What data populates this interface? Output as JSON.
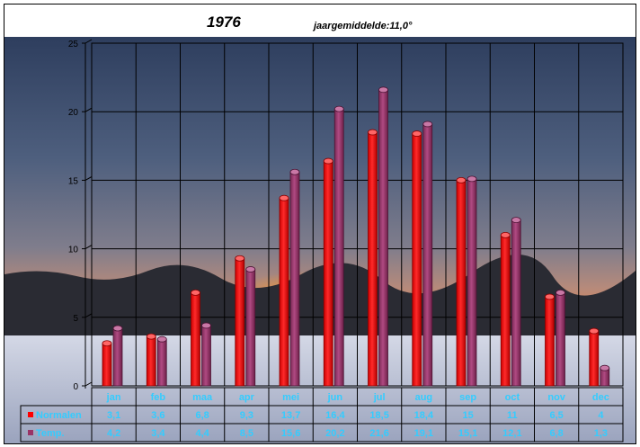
{
  "chart_data": {
    "type": "bar",
    "title": "1976",
    "subtitle": "jaargemiddelde:11,0°",
    "categories": [
      "jan",
      "feb",
      "maa",
      "apr",
      "mei",
      "jun",
      "jul",
      "aug",
      "sep",
      "oct",
      "nov",
      "dec"
    ],
    "series": [
      {
        "name": "Normalen",
        "color": "#ff0000",
        "values": [
          3.1,
          3.6,
          6.8,
          9.3,
          13.7,
          16.4,
          18.5,
          18.4,
          15,
          11,
          6.5,
          4
        ],
        "labels": [
          "3,1",
          "3,6",
          "6,8",
          "9,3",
          "13,7",
          "16,4",
          "18,5",
          "18,4",
          "15",
          "11",
          "6,5",
          "4"
        ]
      },
      {
        "name": "Temp.",
        "color": "#993366",
        "values": [
          4.2,
          3.4,
          4.4,
          8.5,
          15.6,
          20.2,
          21.6,
          19.1,
          15.1,
          12.1,
          6.8,
          1.3
        ],
        "labels": [
          "4,2",
          "3,4",
          "4,4",
          "8,5",
          "15,6",
          "20,2",
          "21,6",
          "19,1",
          "15,1",
          "12,1",
          "6,8",
          "1,3"
        ]
      }
    ],
    "y_ticks": [
      "0",
      "5",
      "10",
      "15",
      "20",
      "25"
    ],
    "ylim": [
      0,
      25
    ],
    "grid": true,
    "legend": "data-table",
    "accent_label_color": "#33ccff"
  }
}
